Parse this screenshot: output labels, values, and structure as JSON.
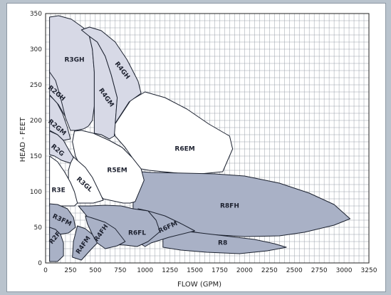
{
  "chart_data": {
    "type": "area",
    "title": "",
    "xlabel": "FLOW (GPM)",
    "ylabel": "HEAD - FEET",
    "xlim": [
      0,
      3250
    ],
    "ylim": [
      0,
      350
    ],
    "x_ticks": [
      0,
      250,
      500,
      750,
      1000,
      1250,
      1500,
      1750,
      2000,
      2250,
      2500,
      2750,
      3000,
      3250
    ],
    "x_tick_labels": [
      "0",
      "250",
      "500",
      "750",
      "1000",
      "1250",
      "1500",
      "1750",
      "2000",
      "2250",
      "2500",
      "2750",
      "3000",
      "3250"
    ],
    "y_ticks": [
      0,
      50,
      100,
      150,
      200,
      250,
      300,
      350
    ],
    "y_tick_labels": [
      "0",
      "50",
      "100",
      "150",
      "200",
      "250",
      "300",
      "350"
    ],
    "grid": true,
    "colors": {
      "shaded": "#d7d9e6",
      "dark": "#a9b1c6",
      "white": "#ffffff",
      "outline": "#1c2230"
    },
    "regions": [
      {
        "name": "R6EM",
        "fill": "white",
        "label_at": [
          1400,
          160
        ],
        "label_angle": 0,
        "points": [
          [
            675,
            190
          ],
          [
            855,
            228
          ],
          [
            1000,
            240
          ],
          [
            1200,
            232
          ],
          [
            1420,
            216
          ],
          [
            1640,
            195
          ],
          [
            1850,
            178
          ],
          [
            1880,
            160
          ],
          [
            1780,
            128
          ],
          [
            1480,
            124
          ],
          [
            1040,
            130
          ],
          [
            960,
            132
          ],
          [
            870,
            148
          ],
          [
            800,
            162
          ],
          [
            700,
            178
          ]
        ]
      },
      {
        "name": "R8FH",
        "fill": "dark",
        "label_at": [
          1850,
          80
        ],
        "label_angle": 0,
        "points": [
          [
            960,
            128
          ],
          [
            1060,
            127
          ],
          [
            1400,
            126
          ],
          [
            1700,
            125
          ],
          [
            2000,
            122
          ],
          [
            2350,
            112
          ],
          [
            2650,
            98
          ],
          [
            2900,
            82
          ],
          [
            3060,
            62
          ],
          [
            2900,
            53
          ],
          [
            2600,
            43
          ],
          [
            2350,
            38
          ],
          [
            2000,
            37
          ],
          [
            1640,
            40
          ],
          [
            1200,
            50
          ],
          [
            1000,
            56
          ],
          [
            880,
            60
          ],
          [
            880,
            90
          ],
          [
            910,
            110
          ]
        ]
      },
      {
        "name": "R8",
        "fill": "dark",
        "label_at": [
          1780,
          28
        ],
        "label_angle": 0,
        "points": [
          [
            1200,
            47
          ],
          [
            1500,
            43
          ],
          [
            1800,
            38
          ],
          [
            2100,
            33
          ],
          [
            2300,
            27
          ],
          [
            2420,
            22
          ],
          [
            2230,
            17
          ],
          [
            1950,
            13
          ],
          [
            1620,
            15
          ],
          [
            1360,
            18
          ],
          [
            1180,
            22
          ],
          [
            1180,
            35
          ]
        ]
      },
      {
        "name": "R6FM",
        "fill": "dark",
        "label_at": [
          1230,
          50
        ],
        "label_angle": -25,
        "points": [
          [
            930,
            76
          ],
          [
            1030,
            73
          ],
          [
            1200,
            66
          ],
          [
            1350,
            56
          ],
          [
            1500,
            45
          ],
          [
            1240,
            36
          ],
          [
            1060,
            28
          ],
          [
            1000,
            23
          ],
          [
            940,
            28
          ],
          [
            880,
            38
          ],
          [
            880,
            56
          ]
        ]
      },
      {
        "name": "R5EM",
        "fill": "white",
        "label_at": [
          720,
          130
        ],
        "label_angle": 0,
        "points": [
          [
            290,
            185
          ],
          [
            360,
            186
          ],
          [
            480,
            182
          ],
          [
            640,
            172
          ],
          [
            770,
            162
          ],
          [
            870,
            148
          ],
          [
            960,
            132
          ],
          [
            990,
            116
          ],
          [
            900,
            86
          ],
          [
            850,
            84
          ],
          [
            780,
            84
          ],
          [
            580,
            90
          ],
          [
            470,
            107
          ],
          [
            370,
            130
          ],
          [
            300,
            150
          ],
          [
            270,
            170
          ]
        ]
      },
      {
        "name": "R3GL",
        "fill": "white",
        "label_at": [
          390,
          110
        ],
        "label_angle": 42,
        "points": [
          [
            270,
            150
          ],
          [
            400,
            134
          ],
          [
            470,
            120
          ],
          [
            540,
            100
          ],
          [
            580,
            88
          ],
          [
            480,
            84
          ],
          [
            380,
            84
          ],
          [
            290,
            84
          ],
          [
            230,
            100
          ],
          [
            230,
            130
          ]
        ]
      },
      {
        "name": "R3E",
        "fill": "white",
        "label_at": [
          130,
          102
        ],
        "label_angle": 0,
        "points": [
          [
            40,
            150
          ],
          [
            120,
            142
          ],
          [
            190,
            128
          ],
          [
            250,
            113
          ],
          [
            290,
            100
          ],
          [
            320,
            84
          ],
          [
            290,
            80
          ],
          [
            40,
            80
          ]
        ]
      },
      {
        "name": "R2G",
        "fill": "shaded",
        "label_at": [
          120,
          158
        ],
        "label_angle": 40,
        "points": [
          [
            40,
            185
          ],
          [
            120,
            180
          ],
          [
            180,
            172
          ],
          [
            240,
            157
          ],
          [
            280,
            148
          ],
          [
            250,
            140
          ],
          [
            160,
            144
          ],
          [
            90,
            150
          ],
          [
            40,
            152
          ]
        ]
      },
      {
        "name": "R2GM",
        "fill": "shaded",
        "label_at": [
          115,
          190
        ],
        "label_angle": 40,
        "points": [
          [
            40,
            235
          ],
          [
            110,
            226
          ],
          [
            170,
            210
          ],
          [
            220,
            190
          ],
          [
            250,
            174
          ],
          [
            180,
            172
          ],
          [
            120,
            180
          ],
          [
            40,
            186
          ]
        ]
      },
      {
        "name": "R2GH",
        "fill": "shaded",
        "label_at": [
          110,
          238
        ],
        "label_angle": 40,
        "points": [
          [
            40,
            272
          ],
          [
            100,
            262
          ],
          [
            160,
            247
          ],
          [
            220,
            228
          ],
          [
            270,
            206
          ],
          [
            250,
            195
          ],
          [
            200,
            205
          ],
          [
            130,
            222
          ],
          [
            40,
            236
          ]
        ]
      },
      {
        "name": "R3GH",
        "fill": "shaded",
        "label_at": [
          290,
          285
        ],
        "label_angle": 0,
        "points": [
          [
            40,
            345
          ],
          [
            130,
            347
          ],
          [
            260,
            342
          ],
          [
            380,
            330
          ],
          [
            440,
            318
          ],
          [
            470,
            300
          ],
          [
            490,
            268
          ],
          [
            490,
            220
          ],
          [
            470,
            200
          ],
          [
            430,
            192
          ],
          [
            380,
            188
          ],
          [
            300,
            186
          ],
          [
            250,
            186
          ],
          [
            200,
            204
          ],
          [
            150,
            232
          ],
          [
            100,
            256
          ],
          [
            40,
            268
          ]
        ]
      },
      {
        "name": "R4GM",
        "fill": "shaded",
        "label_at": [
          610,
          232
        ],
        "label_angle": 55,
        "points": [
          [
            440,
            318
          ],
          [
            520,
            310
          ],
          [
            600,
            290
          ],
          [
            660,
            264
          ],
          [
            720,
            232
          ],
          [
            700,
            195
          ],
          [
            690,
            178
          ],
          [
            640,
            174
          ],
          [
            560,
            180
          ],
          [
            490,
            182
          ],
          [
            490,
            220
          ],
          [
            490,
            268
          ],
          [
            470,
            300
          ]
        ]
      },
      {
        "name": "R4GH",
        "fill": "shaded",
        "label_at": [
          770,
          270
        ],
        "label_angle": 52,
        "points": [
          [
            360,
            327
          ],
          [
            440,
            331
          ],
          [
            560,
            326
          ],
          [
            700,
            310
          ],
          [
            820,
            285
          ],
          [
            930,
            255
          ],
          [
            960,
            238
          ],
          [
            840,
            226
          ],
          [
            700,
            196
          ],
          [
            720,
            232
          ],
          [
            660,
            264
          ],
          [
            600,
            290
          ],
          [
            520,
            310
          ],
          [
            440,
            318
          ]
        ]
      },
      {
        "name": "R6FL",
        "fill": "dark",
        "label_at": [
          920,
          42
        ],
        "label_angle": 0,
        "points": [
          [
            330,
            80
          ],
          [
            450,
            80
          ],
          [
            600,
            81
          ],
          [
            760,
            80
          ],
          [
            880,
            76
          ],
          [
            1030,
            73
          ],
          [
            1110,
            60
          ],
          [
            1150,
            44
          ],
          [
            1030,
            30
          ],
          [
            920,
            23
          ],
          [
            800,
            25
          ],
          [
            650,
            26
          ],
          [
            570,
            32
          ],
          [
            520,
            38
          ],
          [
            470,
            56
          ],
          [
            390,
            70
          ]
        ]
      },
      {
        "name": "R3FM",
        "fill": "dark",
        "label_at": [
          165,
          60
        ],
        "label_angle": 25,
        "points": [
          [
            40,
            83
          ],
          [
            120,
            82
          ],
          [
            220,
            76
          ],
          [
            280,
            64
          ],
          [
            300,
            50
          ],
          [
            230,
            42
          ],
          [
            130,
            40
          ],
          [
            40,
            42
          ]
        ]
      },
      {
        "name": "R2F",
        "fill": "dark",
        "label_at": [
          95,
          35
        ],
        "label_angle": -50,
        "points": [
          [
            40,
            50
          ],
          [
            100,
            47
          ],
          [
            150,
            40
          ],
          [
            180,
            28
          ],
          [
            180,
            10
          ],
          [
            120,
            2
          ],
          [
            40,
            2
          ]
        ]
      },
      {
        "name": "R4FM",
        "fill": "dark",
        "label_at": [
          380,
          25
        ],
        "label_angle": -55,
        "points": [
          [
            320,
            52
          ],
          [
            400,
            48
          ],
          [
            470,
            40
          ],
          [
            520,
            28
          ],
          [
            450,
            18
          ],
          [
            360,
            4
          ],
          [
            270,
            8
          ],
          [
            280,
            30
          ]
        ]
      },
      {
        "name": "R4FH",
        "fill": "dark",
        "label_at": [
          560,
          42
        ],
        "label_angle": -55,
        "points": [
          [
            400,
            66
          ],
          [
            470,
            63
          ],
          [
            600,
            57
          ],
          [
            700,
            48
          ],
          [
            800,
            30
          ],
          [
            720,
            24
          ],
          [
            600,
            20
          ],
          [
            520,
            28
          ],
          [
            470,
            40
          ],
          [
            420,
            55
          ]
        ]
      }
    ]
  }
}
